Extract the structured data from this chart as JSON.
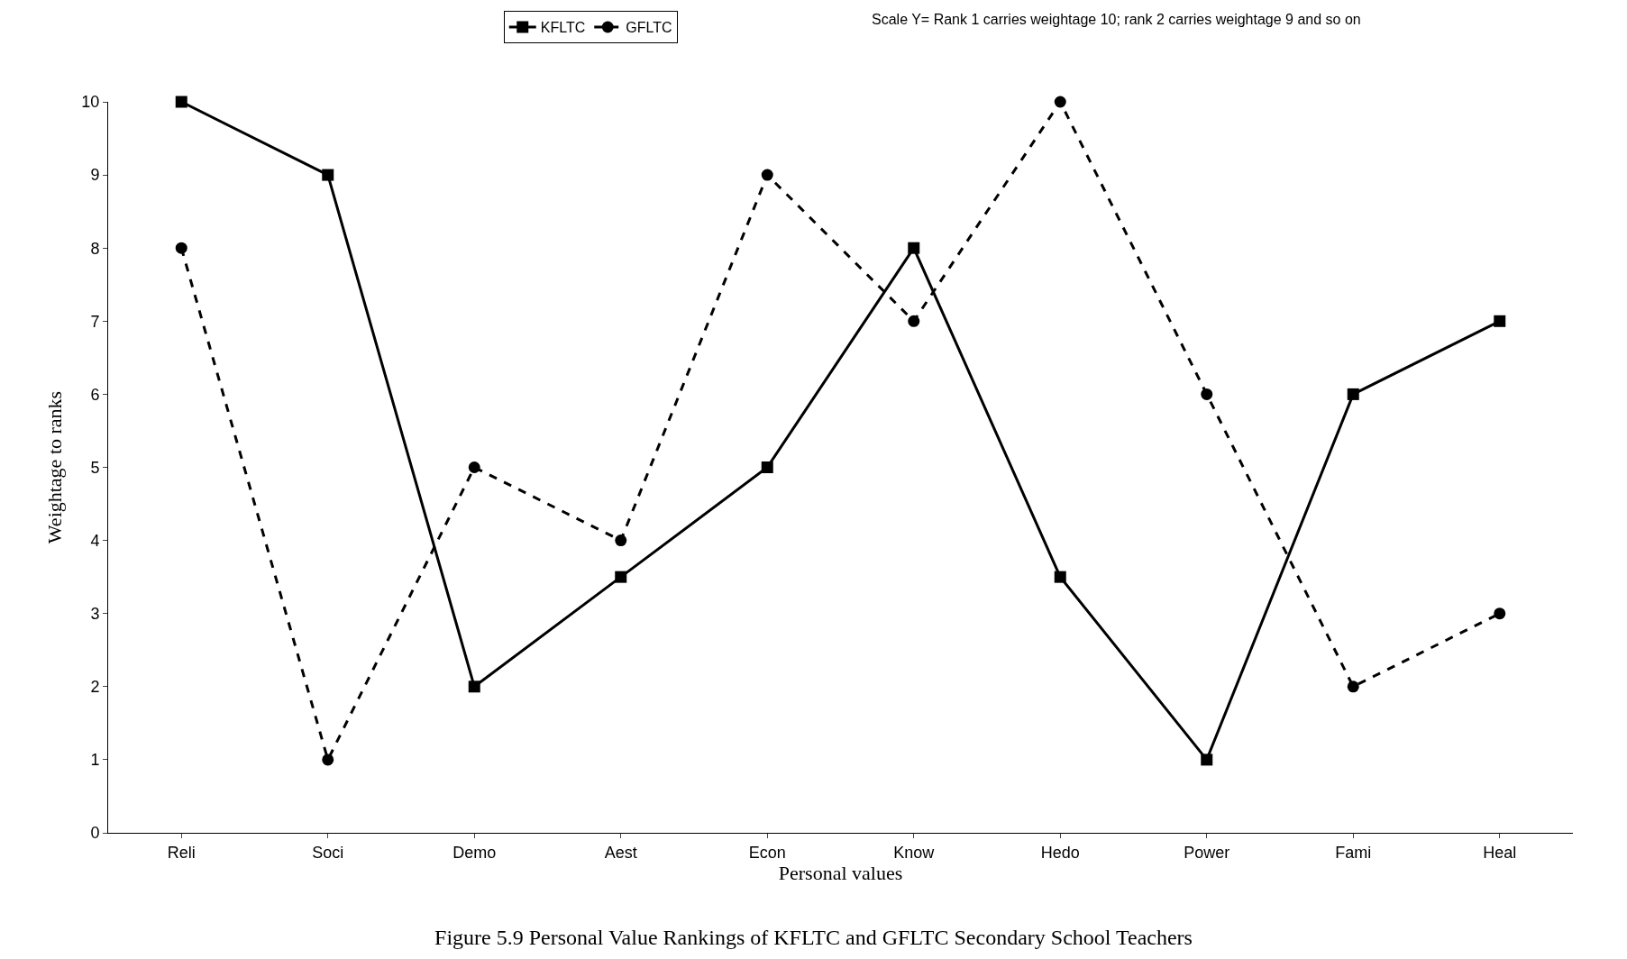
{
  "chart_data": {
    "type": "line",
    "title": "Figure 5.9 Personal Value Rankings of KFLTC and GFLTC Secondary School Teachers",
    "xlabel": "Personal values",
    "ylabel": "Weightage to ranks",
    "categories": [
      "Reli",
      "Soci",
      "Demo",
      "Aest",
      "Econ",
      "Know",
      "Hedo",
      "Power",
      "Fami",
      "Heal"
    ],
    "series": [
      {
        "name": "KFLTC",
        "color": "#000000",
        "marker": "square",
        "line_style": "solid",
        "values": [
          10,
          9,
          2,
          3.5,
          5,
          8,
          3.5,
          1,
          6,
          7
        ]
      },
      {
        "name": "GFLTC",
        "color": "#000000",
        "marker": "circle",
        "line_style": "dashed",
        "values": [
          8,
          1,
          5,
          4,
          9,
          7,
          10,
          6,
          2,
          3
        ]
      }
    ],
    "annotations": [
      "Scale Y= Rank 1 carries weightage 10; rank 2 carries weightage 9 and so on"
    ],
    "ylim": [
      0,
      10
    ],
    "yticks": [
      0,
      1,
      2,
      3,
      4,
      5,
      6,
      7,
      8,
      9,
      10
    ],
    "legend": "top"
  }
}
